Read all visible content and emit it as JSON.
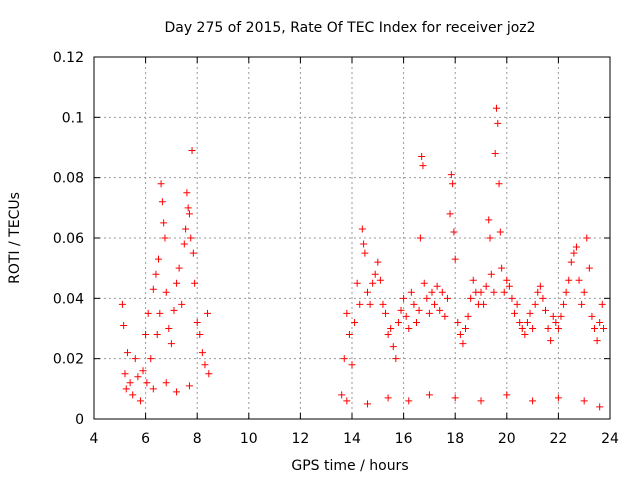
{
  "chart_data": {
    "type": "scatter",
    "title": "Day 275 of 2015, Rate Of TEC Index for receiver joz2",
    "xlabel": "GPS time / hours",
    "ylabel": "ROTI / TECUs",
    "xlim": [
      4,
      24
    ],
    "ylim": [
      0,
      0.12
    ],
    "xticks": [
      4,
      6,
      8,
      10,
      12,
      14,
      16,
      18,
      20,
      22,
      24
    ],
    "yticks": [
      0,
      0.02,
      0.04,
      0.06,
      0.08,
      0.1,
      0.12
    ],
    "xtick_labels": [
      "4",
      "6",
      "8",
      "10",
      "12",
      "14",
      "16",
      "18",
      "20",
      "22",
      "24"
    ],
    "ytick_labels": [
      "0",
      "0.02",
      "0.04",
      "0.06",
      "0.08",
      "0.1",
      "0.12"
    ],
    "grid": true,
    "marker": "+",
    "marker_color": "#ff0000",
    "series": [
      {
        "name": "ROTI",
        "points": [
          [
            5.1,
            0.038
          ],
          [
            5.15,
            0.031
          ],
          [
            5.2,
            0.015
          ],
          [
            5.25,
            0.01
          ],
          [
            5.3,
            0.022
          ],
          [
            5.4,
            0.012
          ],
          [
            5.5,
            0.008
          ],
          [
            5.6,
            0.02
          ],
          [
            5.7,
            0.014
          ],
          [
            5.8,
            0.006
          ],
          [
            5.9,
            0.016
          ],
          [
            6.0,
            0.028
          ],
          [
            6.05,
            0.012
          ],
          [
            6.1,
            0.035
          ],
          [
            6.2,
            0.02
          ],
          [
            6.3,
            0.043
          ],
          [
            6.4,
            0.048
          ],
          [
            6.45,
            0.028
          ],
          [
            6.5,
            0.053
          ],
          [
            6.55,
            0.035
          ],
          [
            6.6,
            0.078
          ],
          [
            6.65,
            0.072
          ],
          [
            6.7,
            0.065
          ],
          [
            6.75,
            0.06
          ],
          [
            6.8,
            0.042
          ],
          [
            6.9,
            0.03
          ],
          [
            7.0,
            0.025
          ],
          [
            7.1,
            0.036
          ],
          [
            7.2,
            0.045
          ],
          [
            7.3,
            0.05
          ],
          [
            7.4,
            0.038
          ],
          [
            7.5,
            0.058
          ],
          [
            7.55,
            0.063
          ],
          [
            7.6,
            0.075
          ],
          [
            7.65,
            0.07
          ],
          [
            7.7,
            0.068
          ],
          [
            7.75,
            0.06
          ],
          [
            7.8,
            0.089
          ],
          [
            7.85,
            0.055
          ],
          [
            7.9,
            0.045
          ],
          [
            8.0,
            0.032
          ],
          [
            8.1,
            0.028
          ],
          [
            8.2,
            0.022
          ],
          [
            8.3,
            0.018
          ],
          [
            8.4,
            0.035
          ],
          [
            8.45,
            0.015
          ],
          [
            6.3,
            0.01
          ],
          [
            6.8,
            0.012
          ],
          [
            7.2,
            0.009
          ],
          [
            7.7,
            0.011
          ],
          [
            13.6,
            0.008
          ],
          [
            13.7,
            0.02
          ],
          [
            13.8,
            0.035
          ],
          [
            13.9,
            0.028
          ],
          [
            14.0,
            0.018
          ],
          [
            14.1,
            0.032
          ],
          [
            14.2,
            0.045
          ],
          [
            14.3,
            0.038
          ],
          [
            14.4,
            0.063
          ],
          [
            14.45,
            0.058
          ],
          [
            14.5,
            0.055
          ],
          [
            14.6,
            0.042
          ],
          [
            14.7,
            0.038
          ],
          [
            14.8,
            0.045
          ],
          [
            14.9,
            0.048
          ],
          [
            15.0,
            0.052
          ],
          [
            15.1,
            0.046
          ],
          [
            15.2,
            0.038
          ],
          [
            15.3,
            0.035
          ],
          [
            15.4,
            0.028
          ],
          [
            15.5,
            0.03
          ],
          [
            15.6,
            0.024
          ],
          [
            15.7,
            0.02
          ],
          [
            15.8,
            0.032
          ],
          [
            15.9,
            0.036
          ],
          [
            16.0,
            0.04
          ],
          [
            16.1,
            0.034
          ],
          [
            16.2,
            0.03
          ],
          [
            16.3,
            0.042
          ],
          [
            16.4,
            0.038
          ],
          [
            16.5,
            0.032
          ],
          [
            16.6,
            0.036
          ],
          [
            16.65,
            0.06
          ],
          [
            16.7,
            0.087
          ],
          [
            16.75,
            0.084
          ],
          [
            16.8,
            0.045
          ],
          [
            16.9,
            0.04
          ],
          [
            17.0,
            0.035
          ],
          [
            17.1,
            0.042
          ],
          [
            17.2,
            0.038
          ],
          [
            17.3,
            0.044
          ],
          [
            17.4,
            0.036
          ],
          [
            17.5,
            0.042
          ],
          [
            17.6,
            0.034
          ],
          [
            17.7,
            0.04
          ],
          [
            17.8,
            0.068
          ],
          [
            17.85,
            0.081
          ],
          [
            17.9,
            0.078
          ],
          [
            17.95,
            0.062
          ],
          [
            18.0,
            0.053
          ],
          [
            18.1,
            0.032
          ],
          [
            18.2,
            0.028
          ],
          [
            18.3,
            0.025
          ],
          [
            18.4,
            0.03
          ],
          [
            18.5,
            0.034
          ],
          [
            18.6,
            0.04
          ],
          [
            18.7,
            0.046
          ],
          [
            18.8,
            0.042
          ],
          [
            18.9,
            0.038
          ],
          [
            19.0,
            0.042
          ],
          [
            19.1,
            0.038
          ],
          [
            19.2,
            0.044
          ],
          [
            19.3,
            0.066
          ],
          [
            19.35,
            0.06
          ],
          [
            19.4,
            0.048
          ],
          [
            19.5,
            0.042
          ],
          [
            19.55,
            0.088
          ],
          [
            19.6,
            0.103
          ],
          [
            19.65,
            0.098
          ],
          [
            19.7,
            0.078
          ],
          [
            19.75,
            0.062
          ],
          [
            19.8,
            0.05
          ],
          [
            19.9,
            0.042
          ],
          [
            20.0,
            0.046
          ],
          [
            20.1,
            0.044
          ],
          [
            20.2,
            0.04
          ],
          [
            20.3,
            0.035
          ],
          [
            20.4,
            0.038
          ],
          [
            20.5,
            0.032
          ],
          [
            20.6,
            0.03
          ],
          [
            20.7,
            0.028
          ],
          [
            20.8,
            0.032
          ],
          [
            20.9,
            0.035
          ],
          [
            21.0,
            0.03
          ],
          [
            21.1,
            0.038
          ],
          [
            21.2,
            0.042
          ],
          [
            21.3,
            0.044
          ],
          [
            21.4,
            0.04
          ],
          [
            21.5,
            0.036
          ],
          [
            21.6,
            0.03
          ],
          [
            21.7,
            0.026
          ],
          [
            21.8,
            0.034
          ],
          [
            21.9,
            0.032
          ],
          [
            22.0,
            0.03
          ],
          [
            22.1,
            0.034
          ],
          [
            22.2,
            0.038
          ],
          [
            22.3,
            0.042
          ],
          [
            22.4,
            0.046
          ],
          [
            22.5,
            0.052
          ],
          [
            22.6,
            0.055
          ],
          [
            22.7,
            0.057
          ],
          [
            22.8,
            0.046
          ],
          [
            22.9,
            0.038
          ],
          [
            23.0,
            0.042
          ],
          [
            23.1,
            0.06
          ],
          [
            23.2,
            0.05
          ],
          [
            23.3,
            0.034
          ],
          [
            23.4,
            0.03
          ],
          [
            23.5,
            0.026
          ],
          [
            23.6,
            0.032
          ],
          [
            23.7,
            0.038
          ],
          [
            23.75,
            0.03
          ],
          [
            13.8,
            0.006
          ],
          [
            14.6,
            0.005
          ],
          [
            15.4,
            0.007
          ],
          [
            16.2,
            0.006
          ],
          [
            17.0,
            0.008
          ],
          [
            18.0,
            0.007
          ],
          [
            19.0,
            0.006
          ],
          [
            20.0,
            0.008
          ],
          [
            21.0,
            0.006
          ],
          [
            22.0,
            0.007
          ],
          [
            23.0,
            0.006
          ],
          [
            23.6,
            0.004
          ]
        ]
      }
    ]
  }
}
